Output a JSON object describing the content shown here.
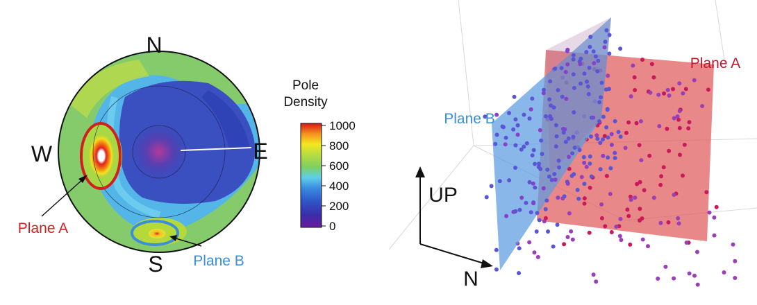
{
  "stereonet": {
    "compass": {
      "north": "N",
      "south": "S",
      "east": "E",
      "west": "W"
    },
    "annotations": {
      "plane_a": "Plane A",
      "plane_b": "Plane B"
    },
    "colors": {
      "plane_a": "#d01f1f",
      "plane_b": "#3a8fd8"
    }
  },
  "colorbar": {
    "title_line1": "Pole",
    "title_line2": "Density",
    "ticks": [
      "1000",
      "800",
      "600",
      "400",
      "200",
      "0"
    ],
    "range": [
      0,
      1000
    ]
  },
  "scene3d": {
    "plane_a_label": "Plane A",
    "plane_b_label": "Plane B",
    "up_label": "UP",
    "north_label": "N",
    "colors": {
      "plane_a": "#e05a5a",
      "plane_b": "#5b9be0",
      "point_a": "#c8195a",
      "point_b": "#5a55d6"
    }
  }
}
